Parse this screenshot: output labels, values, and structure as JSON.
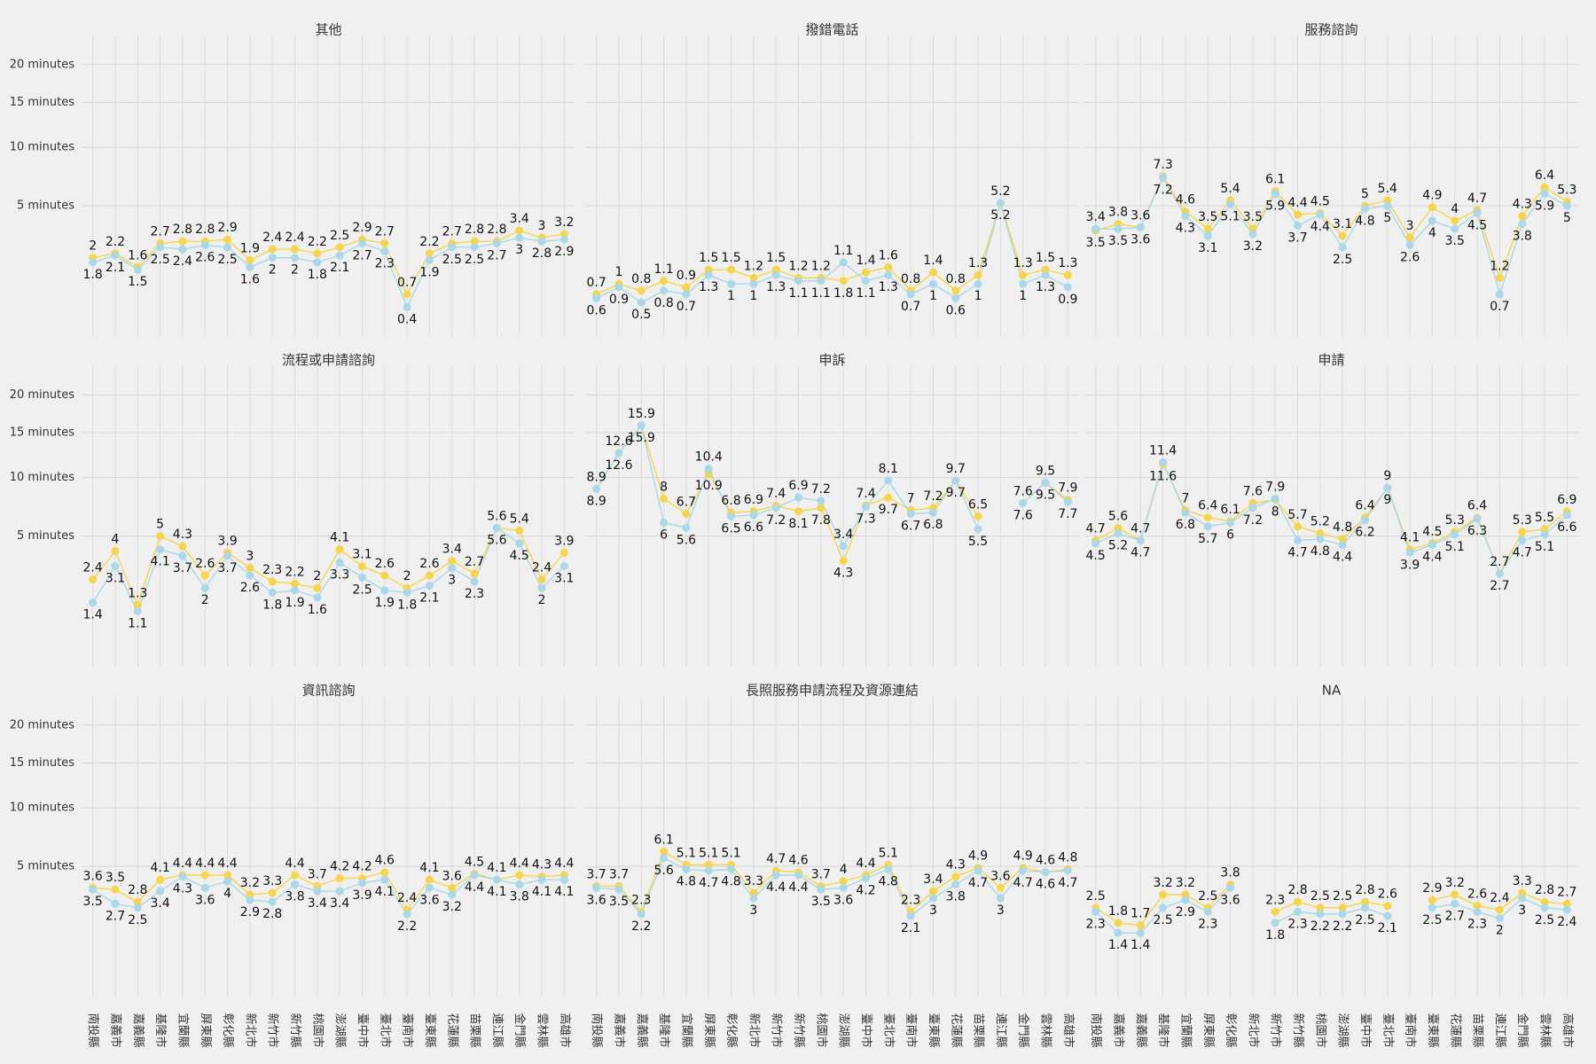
{
  "chart_data": {
    "type": "line",
    "scale": "sqrt",
    "grid": true,
    "ylim": [
      0,
      23.5
    ],
    "yticks": [
      {
        "value": 5,
        "label": "5 minutes"
      },
      {
        "value": 10,
        "label": "10 minutes"
      },
      {
        "value": 15,
        "label": "15 minutes"
      },
      {
        "value": 20,
        "label": "20 minutes"
      }
    ],
    "categories": [
      "南投縣",
      "嘉義市",
      "嘉義縣",
      "基隆市",
      "宜蘭縣",
      "屏東縣",
      "彰化縣",
      "新北市",
      "新竹市",
      "新竹縣",
      "桃園市",
      "澎湖縣",
      "臺中市",
      "臺北市",
      "臺南市",
      "臺東縣",
      "花蓮縣",
      "苗栗縣",
      "連江縣",
      "金門縣",
      "雲林縣",
      "高雄市"
    ],
    "panels": [
      {
        "title": "其他",
        "series": [
          {
            "color": "#f7d54a",
            "values": [
              2,
              2.2,
              1.6,
              2.7,
              2.8,
              2.8,
              2.9,
              1.9,
              2.4,
              2.4,
              2.2,
              2.5,
              2.9,
              2.7,
              0.7,
              2.2,
              2.7,
              2.8,
              2.8,
              3.4,
              3,
              3.2
            ]
          },
          {
            "color": "#a8d8ea",
            "values": [
              1.8,
              2.1,
              1.5,
              2.5,
              2.4,
              2.6,
              2.5,
              1.6,
              2,
              2,
              1.8,
              2.1,
              2.7,
              2.3,
              0.4,
              1.9,
              2.5,
              2.5,
              2.7,
              3,
              2.8,
              2.9
            ]
          }
        ]
      },
      {
        "title": "撥錯電話",
        "series": [
          {
            "color": "#f7d54a",
            "values": [
              0.7,
              1,
              0.8,
              1.1,
              0.9,
              1.5,
              1.5,
              1.2,
              1.5,
              1.2,
              1.2,
              1.1,
              1.4,
              1.6,
              0.8,
              1.4,
              0.8,
              1.3,
              5.2,
              1.3,
              1.5,
              1.3
            ]
          },
          {
            "color": "#a8d8ea",
            "values": [
              0.6,
              0.9,
              0.5,
              0.8,
              0.7,
              1.3,
              1,
              1,
              1.3,
              1.1,
              1.1,
              1.8,
              1.1,
              1.3,
              0.7,
              1,
              0.6,
              1,
              5.2,
              1,
              1.3,
              0.9
            ]
          }
        ]
      },
      {
        "title": "服務諮詢",
        "series": [
          {
            "color": "#f7d54a",
            "values": [
              3.4,
              3.8,
              3.6,
              7.3,
              4.6,
              3.5,
              5.4,
              3.5,
              6.1,
              4.4,
              4.5,
              3.1,
              5,
              5.4,
              3,
              4.9,
              4,
              4.7,
              1.2,
              4.3,
              6.4,
              5.3
            ]
          },
          {
            "color": "#a8d8ea",
            "values": [
              3.5,
              3.5,
              3.6,
              7.2,
              4.3,
              3.1,
              5.1,
              3.2,
              5.9,
              3.7,
              4.4,
              2.5,
              4.8,
              5,
              2.6,
              4,
              3.5,
              4.5,
              0.7,
              3.8,
              5.9,
              5
            ]
          }
        ]
      },
      {
        "title": "流程或申請諮詢",
        "series": [
          {
            "color": "#f7d54a",
            "values": [
              2.4,
              4,
              1.3,
              5,
              4.3,
              2.6,
              3.9,
              3,
              2.3,
              2.2,
              2,
              4.1,
              3.1,
              2.6,
              2,
              2.6,
              3.4,
              2.7,
              5.6,
              5.4,
              2.4,
              3.9
            ]
          },
          {
            "color": "#a8d8ea",
            "values": [
              1.4,
              3.1,
              1.1,
              4.1,
              3.7,
              2,
              3.7,
              2.6,
              1.8,
              1.9,
              1.6,
              3.3,
              2.5,
              1.9,
              1.8,
              2.1,
              3,
              2.3,
              5.6,
              4.5,
              2,
              3.1
            ]
          }
        ]
      },
      {
        "title": "申訴",
        "series": [
          {
            "color": "#f7d54a",
            "values": [
              8.9,
              12.6,
              15.9,
              8,
              6.7,
              10.4,
              6.8,
              6.9,
              7.4,
              6.9,
              7.2,
              3.4,
              7.4,
              8.1,
              7,
              7.2,
              9.7,
              6.5,
              null,
              7.6,
              9.5,
              7.9
            ]
          },
          {
            "color": "#a8d8ea",
            "values": [
              8.9,
              12.6,
              15.9,
              6,
              5.6,
              10.9,
              6.5,
              6.6,
              7.2,
              8.1,
              7.8,
              4.3,
              7.3,
              9.7,
              6.7,
              6.8,
              9.7,
              5.5,
              null,
              7.6,
              9.5,
              7.7
            ]
          }
        ]
      },
      {
        "title": "申請",
        "series": [
          {
            "color": "#f7d54a",
            "values": [
              4.7,
              5.6,
              4.7,
              11.4,
              7,
              6.4,
              6.1,
              7.6,
              7.9,
              5.7,
              5.2,
              4.8,
              6.4,
              9,
              4.1,
              4.5,
              5.3,
              6.4,
              2.7,
              5.3,
              5.5,
              6.9
            ]
          },
          {
            "color": "#a8d8ea",
            "values": [
              4.5,
              5.2,
              4.7,
              11.6,
              6.8,
              5.7,
              6,
              7.2,
              8,
              4.7,
              4.8,
              4.4,
              6.2,
              9,
              3.9,
              4.4,
              5.1,
              6.3,
              2.7,
              4.7,
              5.1,
              6.6
            ]
          }
        ]
      },
      {
        "title": "資訊諮詢",
        "series": [
          {
            "color": "#f7d54a",
            "values": [
              3.6,
              3.5,
              2.8,
              4.1,
              4.4,
              4.4,
              4.4,
              3.2,
              3.3,
              4.4,
              3.7,
              4.2,
              4.2,
              4.6,
              2.4,
              4.1,
              3.6,
              4.5,
              4.1,
              4.4,
              4.3,
              4.4
            ]
          },
          {
            "color": "#a8d8ea",
            "values": [
              3.5,
              2.7,
              2.5,
              3.4,
              4.3,
              3.6,
              4,
              2.9,
              2.8,
              3.8,
              3.4,
              3.4,
              3.9,
              4.1,
              2.2,
              3.6,
              3.2,
              4.4,
              4.1,
              3.8,
              4.1,
              4.1
            ]
          }
        ]
      },
      {
        "title": "長照服務申請流程及資源連結",
        "series": [
          {
            "color": "#f7d54a",
            "values": [
              3.7,
              3.7,
              2.3,
              6.1,
              5.1,
              5.1,
              5.1,
              3.3,
              4.7,
              4.6,
              3.7,
              4,
              4.4,
              5.1,
              2.3,
              3.4,
              4.3,
              4.9,
              3.6,
              4.9,
              4.6,
              4.8
            ]
          },
          {
            "color": "#a8d8ea",
            "values": [
              3.6,
              3.5,
              2.2,
              5.6,
              4.8,
              4.7,
              4.8,
              3,
              4.4,
              4.4,
              3.5,
              3.6,
              4.2,
              4.8,
              2.1,
              3,
              3.8,
              4.7,
              3,
              4.7,
              4.6,
              4.7
            ]
          }
        ]
      },
      {
        "title": "NA",
        "series": [
          {
            "color": "#f7d54a",
            "values": [
              2.5,
              1.8,
              1.7,
              3.2,
              3.2,
              2.5,
              3.8,
              null,
              2.3,
              2.8,
              2.5,
              2.5,
              2.8,
              2.6,
              null,
              2.9,
              3.2,
              2.6,
              2.4,
              3.3,
              2.8,
              2.7
            ]
          },
          {
            "color": "#a8d8ea",
            "values": [
              2.3,
              1.4,
              1.4,
              2.5,
              2.9,
              2.3,
              3.6,
              null,
              1.8,
              2.3,
              2.2,
              2.2,
              2.5,
              2.1,
              null,
              2.5,
              2.7,
              2.3,
              2,
              3,
              2.5,
              2.4
            ]
          }
        ]
      }
    ]
  }
}
